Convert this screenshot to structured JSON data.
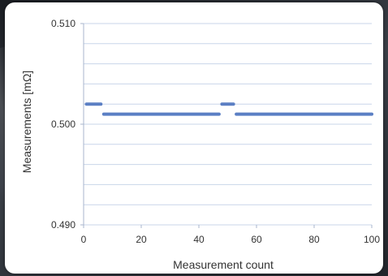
{
  "colors": {
    "series": "#5b7fc4",
    "grid": "#c9d6ea",
    "axis": "#a8b6cc",
    "panel": "#ffffff"
  },
  "chart_data": {
    "type": "scatter",
    "title": "",
    "xlabel": "Measurement count",
    "ylabel": "Measurements [mΩ]",
    "xlim": [
      0,
      100
    ],
    "ylim": [
      0.49,
      0.51
    ],
    "grid": true,
    "x_ticks": [
      0,
      20,
      40,
      60,
      80,
      100
    ],
    "x_tick_labels": [
      "0",
      "20",
      "40",
      "60",
      "80",
      "100"
    ],
    "y_tick_labels": [
      "0.510",
      "0.500",
      "0.490"
    ],
    "y_ticks": [
      0.51,
      0.5,
      0.49
    ],
    "y_gridlines": [
      0.49,
      0.492,
      0.494,
      0.496,
      0.498,
      0.5,
      0.502,
      0.504,
      0.506,
      0.508,
      0.51
    ],
    "series": [
      {
        "segments": [
          {
            "x_start": 1,
            "x_end": 6,
            "y": 0.502
          },
          {
            "x_start": 7,
            "x_end": 47,
            "y": 0.501
          },
          {
            "x_start": 48,
            "x_end": 52,
            "y": 0.502
          },
          {
            "x_start": 53,
            "x_end": 100,
            "y": 0.501
          }
        ]
      }
    ]
  }
}
